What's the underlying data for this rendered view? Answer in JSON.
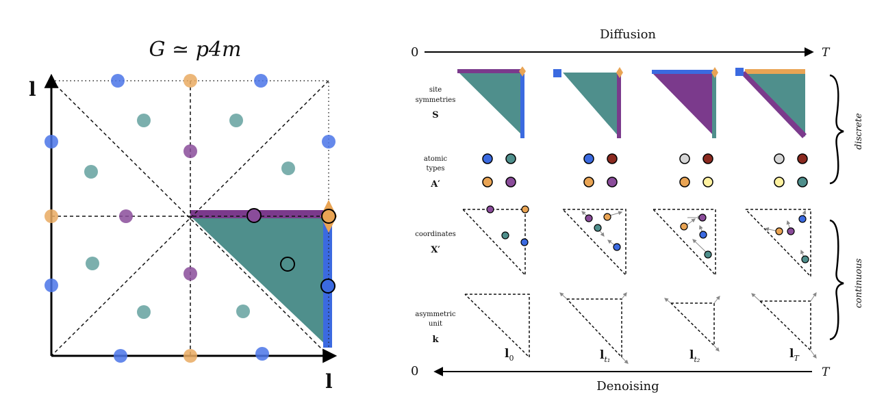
{
  "left_panel": {
    "title": "G ≃ p4m",
    "axis_y_label": "l",
    "axis_x_label": "l",
    "colors": {
      "blue": "#4a74e8",
      "orange": "#e9aa62",
      "teal": "#5a9b98",
      "purple": "#8a4c9a",
      "teal_fill": "#4f8f8c",
      "purple_bar": "#7b3a8c",
      "blue_bar": "#3b6ae0",
      "orange_diamond": "#e9a454"
    }
  },
  "right_panel": {
    "diffusion_label": "Diffusion",
    "denoising_label": "Denoising",
    "time_start": "0",
    "time_end": "T",
    "rows": {
      "site_symmetries": {
        "line1": "site",
        "line2": "symmetries",
        "symbol": "S"
      },
      "atomic_types": {
        "line1": "atomic",
        "line2": "types",
        "symbol": "A′"
      },
      "coordinates": {
        "line1": "coordinates",
        "symbol": "X′"
      },
      "asymmetric_unit": {
        "line1": "asymmetric",
        "line2": "unit",
        "symbol": "k"
      }
    },
    "lattice_labels": [
      "l",
      "l",
      "l",
      "l"
    ],
    "lattice_subscripts": [
      "0",
      "t₁",
      "t₂",
      "T"
    ],
    "brace_labels": {
      "discrete": "discrete",
      "continuous": "continuous"
    },
    "atom_type_colors": [
      [
        "#3b6ae0",
        "#4f8f8c",
        "#e9a454",
        "#8a4c9a"
      ],
      [
        "#3b6ae0",
        "#8b2a20",
        "#e9a454",
        "#8a4c9a"
      ],
      [
        "#d6d6d6",
        "#8b2a20",
        "#e9a454",
        "#fff2a0"
      ],
      [
        "#d6d6d6",
        "#8b2a20",
        "#fff2a0",
        "#4f8f8c"
      ]
    ]
  }
}
